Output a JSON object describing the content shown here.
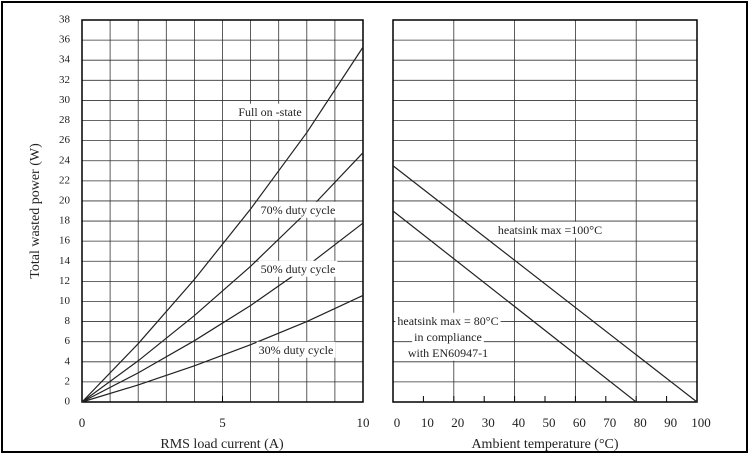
{
  "chart_data": [
    {
      "type": "line",
      "xlabel": "RMS load current (A)",
      "ylabel": "Total wasted power (W)",
      "xlim": [
        0,
        10
      ],
      "xticks": [
        0,
        5,
        10
      ],
      "xgrid": [
        0,
        1,
        2,
        3,
        4,
        5,
        6,
        7,
        8,
        9,
        10
      ],
      "ylim": [
        0,
        38
      ],
      "yticks": [
        0,
        2,
        4,
        6,
        8,
        10,
        12,
        14,
        16,
        18,
        20,
        22,
        24,
        26,
        28,
        30,
        32,
        34,
        36,
        38
      ],
      "grid": true,
      "x": [
        0,
        2,
        4,
        6,
        8,
        10
      ],
      "series": [
        {
          "name": "Full on -state",
          "color": "#222222",
          "values": [
            0,
            5.8,
            12.2,
            19.2,
            26.8,
            35.3
          ]
        },
        {
          "name": "70% duty cycle",
          "color": "#222222",
          "values": [
            0,
            4.1,
            8.6,
            13.5,
            18.9,
            24.8
          ]
        },
        {
          "name": "50% duty cycle",
          "color": "#222222",
          "values": [
            0,
            2.9,
            6.1,
            9.6,
            13.5,
            17.8
          ]
        },
        {
          "name": "30% duty cycle",
          "color": "#222222",
          "values": [
            0,
            1.7,
            3.6,
            5.7,
            8.0,
            10.6
          ]
        }
      ]
    },
    {
      "type": "line",
      "xlabel": "Ambient temperature (°C)",
      "xlim": [
        0,
        100
      ],
      "xticks": [
        0,
        10,
        20,
        30,
        40,
        50,
        60,
        70,
        80,
        90,
        100
      ],
      "xgrid": [
        0,
        20,
        40,
        60,
        80,
        100
      ],
      "grid": true,
      "series": [
        {
          "name": "heatsink max =100°C",
          "color": "#222222",
          "x": [
            0,
            100
          ],
          "values": [
            23.5,
            0
          ]
        },
        {
          "name": "heatsink max = 80°C",
          "color": "#222222",
          "x": [
            0,
            80
          ],
          "values": [
            19,
            0
          ]
        }
      ],
      "annotations": [
        "in compliance",
        "with EN60947-1"
      ]
    }
  ]
}
